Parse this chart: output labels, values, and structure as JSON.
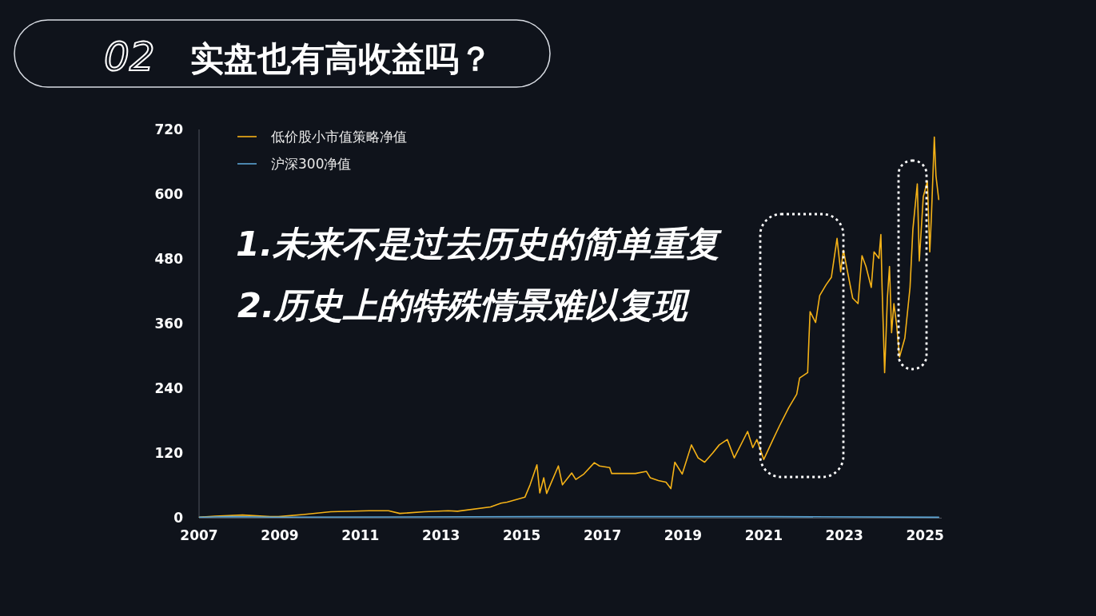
{
  "chart_data": {
    "type": "line",
    "title": "02 实盘也有高收益吗？",
    "annotations": [
      "1.未来不是过去历史的简单重复",
      "2.历史上的特殊情景难以复现"
    ],
    "legend": "top left",
    "xlim": [
      "2007-01-01",
      "2025-06-01"
    ],
    "xticks": [
      "2007",
      "2009",
      "2011",
      "2013",
      "2015",
      "2017",
      "2019",
      "2021",
      "2023",
      "2025"
    ],
    "ylim": [
      0,
      720
    ],
    "yticks": [
      0,
      120,
      240,
      360,
      480,
      600,
      720
    ],
    "series": [
      {
        "name": "低价股小市值策略净值",
        "color": "#f5b217",
        "x": [
          "2007-01-04",
          "2007-05-26",
          "2008-01-30",
          "2008-10-05",
          "2008-12-20",
          "2009-07-31",
          "2010-04-08",
          "2011-03-21",
          "2011-09-13",
          "2011-12-24",
          "2012-08-04",
          "2013-03-06",
          "2013-05-30",
          "2014-03-25",
          "2014-06-28",
          "2014-08-22",
          "2015-01-30",
          "2015-03-18",
          "2015-05-19",
          "2015-06-14",
          "2015-07-20",
          "2015-08-15",
          "2015-09-17",
          "2015-11-29",
          "2016-01-05",
          "2016-03-29",
          "2016-05-05",
          "2016-07-17",
          "2016-10-20",
          "2016-12-06",
          "2017-03-08",
          "2017-03-26",
          "2017-10-27",
          "2018-02-03",
          "2018-03-11",
          "2018-05-23",
          "2018-07-31",
          "2018-09-13",
          "2018-10-19",
          "2018-12-25",
          "2019-03-18",
          "2019-05-18",
          "2019-07-16",
          "2019-09-27",
          "2019-11-25",
          "2020-02-06",
          "2020-04-09",
          "2020-08-08",
          "2020-09-24",
          "2020-10-31",
          "2021-01-01",
          "2021-03-26",
          "2021-05-23",
          "2021-08-15",
          "2021-10-27",
          "2021-11-22",
          "2022-02-03",
          "2022-02-14",
          "2022-02-25",
          "2022-04-16",
          "2022-05-23",
          "2022-07-20",
          "2022-09-06",
          "2022-10-27",
          "2022-11-29",
          "2022-12-24",
          "2023-01-30",
          "2023-03-18",
          "2023-05-05",
          "2023-06-10",
          "2023-07-16",
          "2023-09-02",
          "2023-09-27",
          "2023-11-10",
          "2023-11-28",
          "2023-12-09",
          "2024-01-01",
          "2024-01-26",
          "2024-02-14",
          "2024-03-04",
          "2024-03-25",
          "2024-04-19",
          "2024-05-15",
          "2024-07-02",
          "2024-08-18",
          "2024-09-13",
          "2024-10-23",
          "2024-11-10",
          "2024-12-16",
          "2025-01-22",
          "2025-02-13",
          "2025-02-28",
          "2025-03-26",
          "2025-04-10",
          "2025-05-05"
        ],
        "values": [
          1,
          3,
          5,
          2,
          2,
          6,
          11,
          13,
          13,
          8,
          11,
          13,
          12,
          20,
          27,
          29,
          38,
          61,
          98,
          46,
          74,
          45,
          61,
          96,
          61,
          83,
          71,
          81,
          102,
          96,
          93,
          82,
          82,
          86,
          74,
          69,
          66,
          54,
          103,
          81,
          135,
          111,
          103,
          120,
          135,
          145,
          111,
          160,
          130,
          145,
          108,
          145,
          170,
          204,
          229,
          259,
          269,
          328,
          382,
          362,
          412,
          432,
          446,
          518,
          456,
          496,
          456,
          407,
          397,
          486,
          466,
          427,
          493,
          481,
          525,
          427,
          269,
          407,
          466,
          343,
          397,
          357,
          298,
          333,
          427,
          535,
          619,
          476,
          595,
          624,
          493,
          560,
          706,
          634,
          590
        ]
      },
      {
        "name": "沪深300净值",
        "color": "#5ba4d4",
        "x": [
          "2007-01-04",
          "2007-10-16",
          "2008-11-04",
          "2015-06-08",
          "2021-02-10",
          "2025-05-05"
        ],
        "values": [
          1,
          2,
          1,
          2,
          2,
          1
        ]
      }
    ]
  }
}
